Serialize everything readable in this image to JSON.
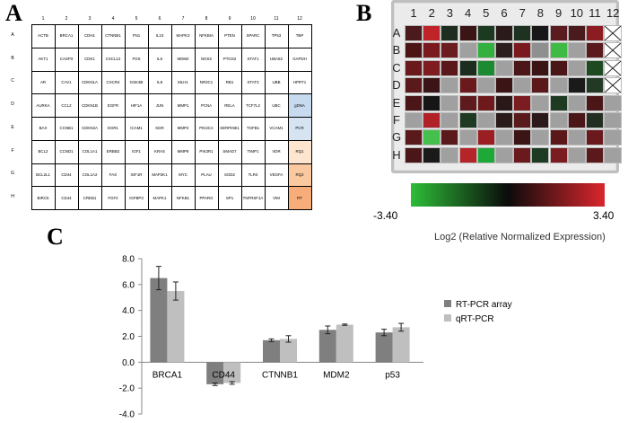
{
  "panels": {
    "a": "A",
    "b": "B",
    "c": "C"
  },
  "panel_a": {
    "columns": [
      "1",
      "2",
      "3",
      "4",
      "5",
      "6",
      "7",
      "8",
      "9",
      "10",
      "11",
      "12"
    ],
    "rows": [
      {
        "label": "A",
        "genes": [
          "ACTB",
          "BRCA1",
          "CDH1",
          "CTNNB1",
          "FN1",
          "IL10",
          "MAPK3",
          "NFKBIA",
          "PTEN",
          "SPARC",
          "TP53",
          "TBP"
        ]
      },
      {
        "label": "B",
        "genes": [
          "AKT1",
          "CASP3",
          "CDK1",
          "CXCL12",
          "FOS",
          "IL6",
          "MDM2",
          "NOS2",
          "PTGS2",
          "STAT1",
          "UBA52",
          "GAPDH"
        ]
      },
      {
        "label": "C",
        "genes": [
          "AR",
          "CAV1",
          "CDKN1A",
          "CXCR4",
          "GSK3B",
          "IL8",
          "MLH1",
          "NR3C1",
          "RB1",
          "STAT3",
          "UBB",
          "HPRT1"
        ]
      },
      {
        "label": "D",
        "genes": [
          "AURKA",
          "CCL2",
          "CDKN1B",
          "EGFR",
          "HIF1A",
          "JUN",
          "MMP1",
          "PCNA",
          "RELA",
          "TCF7L2",
          "UBC",
          "gDNA"
        ]
      },
      {
        "label": "E",
        "genes": [
          "BAX",
          "CCNB1",
          "CDKN2A",
          "EGR1",
          "ICAM1",
          "KDR",
          "MMP2",
          "PIK3CA",
          "SERPINE1",
          "TGFB1",
          "VCAM1",
          "PCR"
        ]
      },
      {
        "label": "F",
        "genes": [
          "BCL2",
          "CCND1",
          "COL1A1",
          "ERBB2",
          "IGF1",
          "KRAS",
          "MMP9",
          "PIK3R1",
          "SMAD7",
          "TIMP1",
          "VDR",
          "RQ1"
        ]
      },
      {
        "label": "G",
        "genes": [
          "BCL2L1",
          "CD44",
          "COL1A2",
          "FAS",
          "IGF1R",
          "MAP2K1",
          "MYC",
          "PLAU",
          "SOD2",
          "TLR4",
          "VEGFA",
          "RQ2"
        ]
      },
      {
        "label": "H",
        "genes": [
          "BIRC5",
          "CD44",
          "CREB1",
          "FGF2",
          "IGFBP3",
          "MAPK1",
          "NFKB1",
          "PPARG",
          "SP1",
          "TNFRSF1A",
          "VIM",
          "RT"
        ]
      }
    ],
    "control_colors": {
      "gDNA": "#c8daef",
      "PCR": "#d6e4f2",
      "RQ1": "#fde5d0",
      "RQ2": "#fbc9a0",
      "RT": "#f7ad7a"
    }
  },
  "panel_b": {
    "columns": [
      "1",
      "2",
      "3",
      "4",
      "5",
      "6",
      "7",
      "8",
      "9",
      "10",
      "11",
      "12"
    ],
    "rows": [
      "A",
      "B",
      "C",
      "D",
      "E",
      "F",
      "G",
      "H"
    ],
    "colors": [
      [
        "#4a1a1c",
        "#c02428",
        "#1d2e1e",
        "#3b1416",
        "#1b3a20",
        "#2a1a1a",
        "#1d3220",
        "#181818",
        "#5a1c1e",
        "#4a1a1c",
        "#8a1c22",
        "x"
      ],
      [
        "#4d1416",
        "#7a1a1e",
        "#6a1c20",
        "#a0a0a0",
        "#32b040",
        "#2c1e1e",
        "#7a1a1e",
        "#8f8f8f",
        "#3fba44",
        "#a0a0a0",
        "#5a1a1c",
        "x"
      ],
      [
        "#6a1a1c",
        "#7e1c20",
        "#5a181a",
        "#1c2c1e",
        "#1b8a30",
        "#a0a0a0",
        "#4a1618",
        "#3b1416",
        "#4a1618",
        "#a0a0a0",
        "#1e4a22",
        "x"
      ],
      [
        "#5a1a1c",
        "#3a1416",
        "#a0a0a0",
        "#6a1a1c",
        "#a0a0a0",
        "#3b1416",
        "#a0a0a0",
        "#5a181a",
        "#a0a0a0",
        "#1a1a1a",
        "#223a24",
        "x"
      ],
      [
        "#4a1618",
        "#161616",
        "#a0a0a0",
        "#5e1a1c",
        "#6e1a1c",
        "#2a1818",
        "#7a1c20",
        "#a0a0a0",
        "#1e3a22",
        "#a0a0a0",
        "#4a1618",
        "#a0a0a0"
      ],
      [
        "#a0a0a0",
        "#b02226",
        "#a0a0a0",
        "#1e3a22",
        "#a0a0a0",
        "#2a1a1a",
        "#5a1a1c",
        "#2c1a1a",
        "#a0a0a0",
        "#4a1618",
        "#222e22",
        "#a0a0a0"
      ],
      [
        "#5a1a1c",
        "#45c04c",
        "#5a1a1c",
        "#a0a0a0",
        "#9a1e22",
        "#a0a0a0",
        "#3b1416",
        "#a0a0a0",
        "#5a181a",
        "#a0a0a0",
        "#6a1a1c",
        "#a0a0a0"
      ],
      [
        "#4a1618",
        "#1a1a1a",
        "#a0a0a0",
        "#b52428",
        "#1ea838",
        "#a0a0a0",
        "#6a1a1c",
        "#1d3a22",
        "#7a1c20",
        "#a0a0a0",
        "#5a1a1c",
        "#a0a0a0"
      ]
    ],
    "legend": {
      "min_label": "-3.40",
      "max_label": "3.40",
      "title": "Log2 (Relative Normalized Expression)"
    }
  },
  "chart_data": {
    "type": "bar",
    "categories": [
      "BRCA1",
      "CD44",
      "CTNNB1",
      "MDM2",
      "p53"
    ],
    "series": [
      {
        "name": "RT-PCR array",
        "values": [
          6.5,
          -1.7,
          1.7,
          2.5,
          2.3
        ],
        "errors": [
          0.9,
          0.1,
          0.1,
          0.3,
          0.25
        ],
        "color": "#7f7f7f"
      },
      {
        "name": "qRT-PCR",
        "values": [
          5.5,
          -1.6,
          1.8,
          2.9,
          2.7
        ],
        "errors": [
          0.7,
          0.1,
          0.25,
          0.05,
          0.3
        ],
        "color": "#bfbfbf"
      }
    ],
    "y_ticks": [
      "8.0",
      "6.0",
      "4.0",
      "2.0",
      "0.0",
      "-2.0",
      "-4.0"
    ],
    "ylim": [
      -4,
      8
    ],
    "title": "",
    "xlabel": "",
    "ylabel": ""
  }
}
